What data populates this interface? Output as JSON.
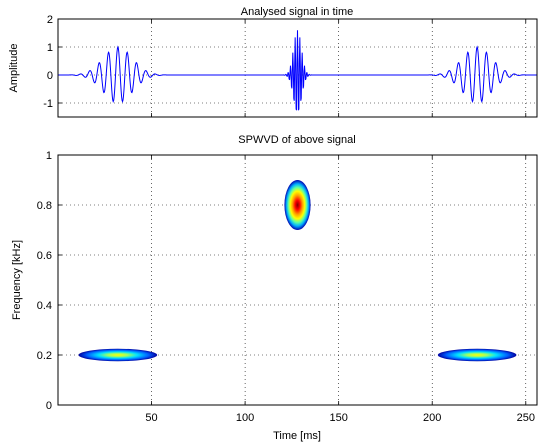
{
  "chart_data": [
    {
      "type": "line",
      "title": "Analysed signal in time",
      "xlabel": "",
      "ylabel": "Amplitude",
      "xlim": [
        0,
        256
      ],
      "ylim": [
        -1.5,
        2
      ],
      "xticks": [
        50,
        100,
        150,
        200,
        250
      ],
      "yticks": [
        "2",
        "1",
        "0",
        "-1"
      ],
      "ytick_values": [
        2,
        1,
        0,
        -1
      ],
      "grid": true,
      "line_color": "#0000ff",
      "components": [
        {
          "kind": "wave_packet",
          "center_ms": 32,
          "width_ms": 11,
          "amplitude": 1,
          "freq_khz": 0.2
        },
        {
          "kind": "wave_packet",
          "center_ms": 128,
          "width_ms": 3,
          "amplitude": 1.6,
          "freq_khz": 0.8
        },
        {
          "kind": "wave_packet",
          "center_ms": 224,
          "width_ms": 11,
          "amplitude": 1,
          "freq_khz": 0.2
        }
      ]
    },
    {
      "type": "heatmap",
      "title": "SPWVD of above signal",
      "xlabel": "Time [ms]",
      "ylabel": "Frequency [kHz]",
      "xlim": [
        0,
        256
      ],
      "ylim": [
        0,
        1
      ],
      "xticks": [
        "50",
        "100",
        "150",
        "200",
        "250"
      ],
      "xtick_values": [
        50,
        100,
        150,
        200,
        250
      ],
      "yticks": [
        "0",
        "0.2",
        "0.4",
        "0.6",
        "0.8",
        "1"
      ],
      "ytick_values": [
        0,
        0.2,
        0.4,
        0.6,
        0.8,
        1
      ],
      "grid": true,
      "colormap": "jet",
      "blobs": [
        {
          "time_ms": 32,
          "freq_khz": 0.2,
          "time_spread_ms": 21,
          "freq_spread_khz": 0.025,
          "intensity": 0.55
        },
        {
          "time_ms": 128,
          "freq_khz": 0.8,
          "time_spread_ms": 7,
          "freq_spread_khz": 0.1,
          "intensity": 1.0
        },
        {
          "time_ms": 224,
          "freq_khz": 0.2,
          "time_spread_ms": 21,
          "freq_spread_khz": 0.025,
          "intensity": 0.55
        }
      ]
    }
  ]
}
